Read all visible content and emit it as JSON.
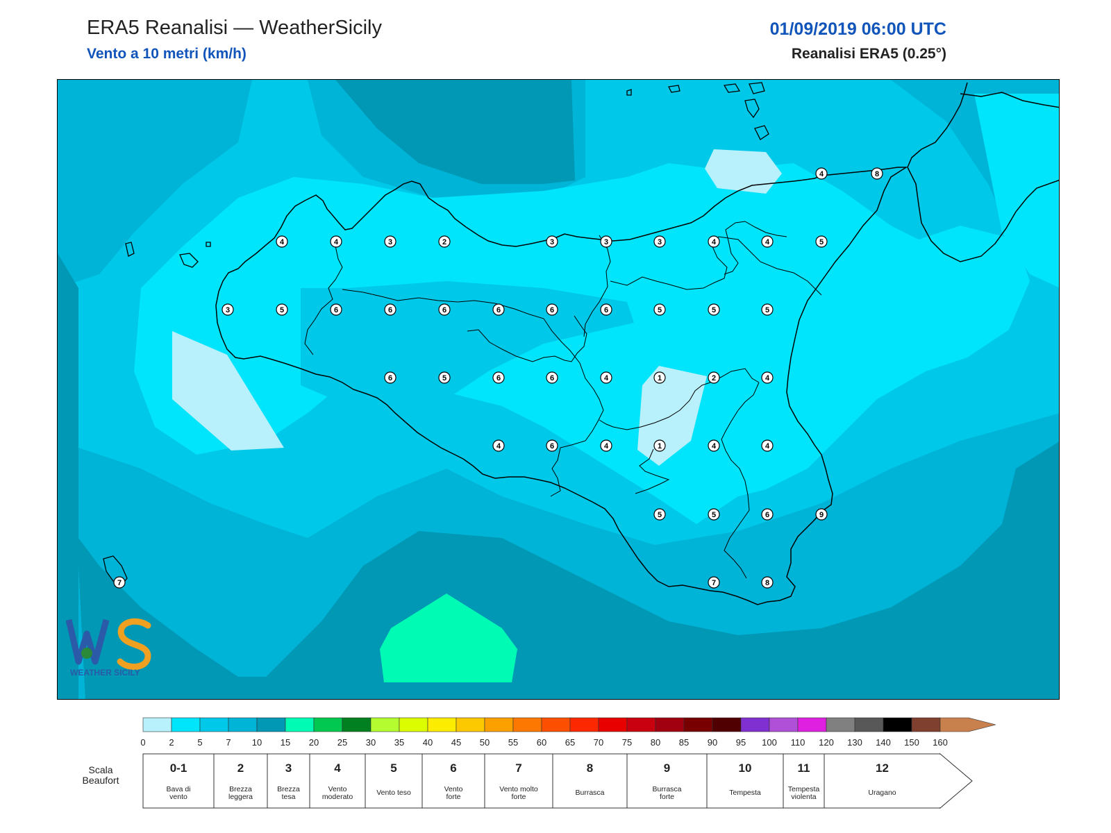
{
  "header": {
    "title": "ERA5 Reanalisi — WeatherSicily",
    "subtitle": "Vento a 10 metri (km/h)",
    "datetime": "01/09/2019 06:00 UTC",
    "source": "Reanalisi ERA5 (0.25°)"
  },
  "logo": {
    "text": "WEATHER SICILY"
  },
  "colors": {
    "c0_2": "#b8f0fc",
    "c2_5": "#00e4fc",
    "c5_7": "#00c8e8",
    "c7_10": "#00b4d8",
    "c10_15": "#0098b4",
    "c15_20": "#00fcb4"
  },
  "colorbar": {
    "ticks": [
      "0",
      "2",
      "5",
      "7",
      "10",
      "15",
      "20",
      "25",
      "30",
      "35",
      "40",
      "45",
      "50",
      "55",
      "60",
      "65",
      "70",
      "75",
      "80",
      "85",
      "90",
      "95",
      "100",
      "110",
      "120",
      "130",
      "140",
      "150",
      "160"
    ],
    "colors": [
      "#b8f0fc",
      "#00e4fc",
      "#00c8e8",
      "#00b4d8",
      "#0098b4",
      "#00fcb4",
      "#00c850",
      "#008020",
      "#b4fc30",
      "#dcfc00",
      "#fcec00",
      "#fcc800",
      "#fca000",
      "#fc7800",
      "#fc5000",
      "#fc2800",
      "#e80000",
      "#c80010",
      "#a00010",
      "#780000",
      "#500000",
      "#8030d0",
      "#b050d8",
      "#e020e0",
      "#808080",
      "#585858",
      "#000000",
      "#804030",
      "#c8804c"
    ]
  },
  "beaufort": {
    "label_line1": "Scala",
    "label_line2": "Beaufort",
    "cells": [
      {
        "num": "0-1",
        "desc1": "Bava di",
        "desc2": "vento"
      },
      {
        "num": "2",
        "desc1": "Brezza",
        "desc2": "leggera"
      },
      {
        "num": "3",
        "desc1": "Brezza",
        "desc2": "tesa"
      },
      {
        "num": "4",
        "desc1": "Vento",
        "desc2": "moderato"
      },
      {
        "num": "5",
        "desc1": "Vento teso",
        "desc2": ""
      },
      {
        "num": "6",
        "desc1": "Vento",
        "desc2": "forte"
      },
      {
        "num": "7",
        "desc1": "Vento molto",
        "desc2": "forte"
      },
      {
        "num": "8",
        "desc1": "Burrasca",
        "desc2": ""
      },
      {
        "num": "9",
        "desc1": "Burrasca",
        "desc2": "forte"
      },
      {
        "num": "10",
        "desc1": "Tempesta",
        "desc2": ""
      },
      {
        "num": "11",
        "desc1": "Tempesta",
        "desc2": "violenta"
      },
      {
        "num": "12",
        "desc1": "Uragano",
        "desc2": ""
      }
    ]
  },
  "stations": [
    {
      "v": "4"
    },
    {
      "v": "8"
    },
    {
      "v": "4"
    },
    {
      "v": "4"
    },
    {
      "v": "3"
    },
    {
      "v": "2"
    },
    {
      "v": "3"
    },
    {
      "v": "3"
    },
    {
      "v": "3"
    },
    {
      "v": "4"
    },
    {
      "v": "4"
    },
    {
      "v": "5"
    },
    {
      "v": "3"
    },
    {
      "v": "5"
    },
    {
      "v": "6"
    },
    {
      "v": "6"
    },
    {
      "v": "6"
    },
    {
      "v": "6"
    },
    {
      "v": "6"
    },
    {
      "v": "6"
    },
    {
      "v": "5"
    },
    {
      "v": "5"
    },
    {
      "v": "5"
    },
    {
      "v": "6"
    },
    {
      "v": "5"
    },
    {
      "v": "6"
    },
    {
      "v": "6"
    },
    {
      "v": "4"
    },
    {
      "v": "1"
    },
    {
      "v": "2"
    },
    {
      "v": "4"
    },
    {
      "v": "4"
    },
    {
      "v": "6"
    },
    {
      "v": "4"
    },
    {
      "v": "1"
    },
    {
      "v": "4"
    },
    {
      "v": "4"
    },
    {
      "v": "5"
    },
    {
      "v": "5"
    },
    {
      "v": "6"
    },
    {
      "v": "9"
    },
    {
      "v": "7"
    },
    {
      "v": "8"
    },
    {
      "v": "7"
    }
  ]
}
